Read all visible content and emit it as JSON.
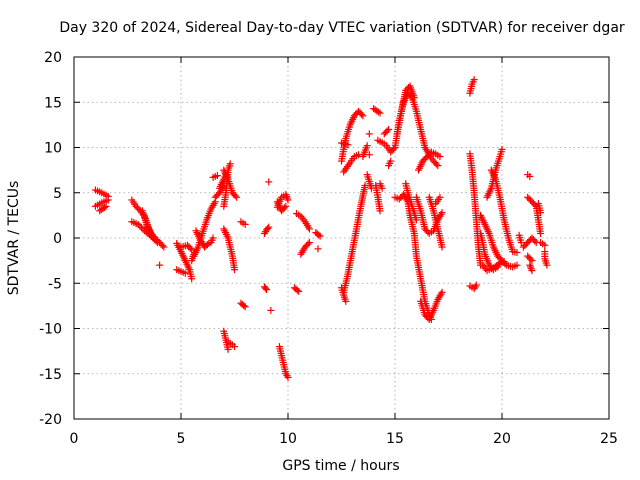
{
  "chart_data": {
    "type": "scatter",
    "title": "Day 320 of 2024, Sidereal Day-to-day VTEC variation (SDTVAR) for receiver dgar",
    "xlabel": "GPS time / hours",
    "ylabel": "SDTVAR / TECUs",
    "xlim": [
      0,
      25
    ],
    "ylim": [
      -20,
      20
    ],
    "xticks": [
      0,
      5,
      10,
      15,
      20,
      25
    ],
    "yticks": [
      -20,
      -15,
      -10,
      -5,
      0,
      5,
      10,
      15,
      20
    ],
    "grid": true,
    "marker_color": "#ff0000",
    "marker": "plus",
    "tracks": [
      [
        [
          1.0,
          5.3
        ],
        [
          1.3,
          5.0
        ],
        [
          1.6,
          4.6
        ]
      ],
      [
        [
          1.0,
          3.5
        ],
        [
          1.3,
          3.9
        ],
        [
          1.6,
          4.2
        ]
      ],
      [
        [
          1.2,
          3.0
        ],
        [
          1.5,
          3.5
        ]
      ],
      [
        [
          2.7,
          4.2
        ],
        [
          2.9,
          3.5
        ],
        [
          3.1,
          3.0
        ],
        [
          3.3,
          2.4
        ],
        [
          3.5,
          1.0
        ],
        [
          3.7,
          0.0
        ],
        [
          3.9,
          -0.5
        ]
      ],
      [
        [
          2.7,
          1.8
        ],
        [
          3.0,
          1.5
        ],
        [
          3.3,
          0.8
        ],
        [
          3.6,
          0.2
        ],
        [
          3.9,
          -0.3
        ]
      ],
      [
        [
          3.2,
          3.0
        ],
        [
          3.4,
          1.5
        ],
        [
          3.6,
          0.5
        ],
        [
          3.8,
          0.0
        ]
      ],
      [
        [
          4.0,
          -0.5
        ],
        [
          4.2,
          -1.0
        ]
      ],
      [
        [
          4.0,
          -3.0
        ]
      ],
      [
        [
          4.8,
          -0.6
        ],
        [
          5.0,
          -1.5
        ],
        [
          5.2,
          -2.5
        ],
        [
          5.4,
          -3.5
        ],
        [
          5.5,
          -4.5
        ]
      ],
      [
        [
          4.8,
          -3.5
        ],
        [
          5.0,
          -3.7
        ],
        [
          5.2,
          -3.9
        ]
      ],
      [
        [
          5.0,
          -1.0
        ],
        [
          5.3,
          -0.8
        ],
        [
          5.5,
          -1.3
        ]
      ],
      [
        [
          5.6,
          -2.0
        ],
        [
          5.8,
          -1.0
        ],
        [
          6.0,
          0.5
        ],
        [
          6.2,
          2.0
        ],
        [
          6.4,
          3.2
        ],
        [
          6.6,
          4.0
        ]
      ],
      [
        [
          5.5,
          -2.5
        ],
        [
          5.6,
          -1.8
        ]
      ],
      [
        [
          5.7,
          0.8
        ],
        [
          5.9,
          -0.2
        ],
        [
          6.1,
          -1.0
        ],
        [
          6.3,
          -0.6
        ]
      ],
      [
        [
          6.4,
          -0.5
        ],
        [
          6.5,
          0.0
        ]
      ],
      [
        [
          6.5,
          6.7
        ],
        [
          6.7,
          6.9
        ]
      ],
      [
        [
          6.6,
          4.5
        ],
        [
          6.8,
          5.0
        ],
        [
          7.0,
          5.8
        ]
      ],
      [
        [
          7.0,
          3.5
        ],
        [
          7.1,
          5.0
        ],
        [
          7.2,
          7.5
        ],
        [
          7.3,
          8.2
        ]
      ],
      [
        [
          7.0,
          7.5
        ],
        [
          7.2,
          6.5
        ],
        [
          7.4,
          5.0
        ],
        [
          7.6,
          4.5
        ]
      ],
      [
        [
          6.8,
          5.5
        ],
        [
          7.0,
          6.5
        ],
        [
          7.1,
          7.0
        ]
      ],
      [
        [
          7.0,
          1.0
        ],
        [
          7.2,
          0.0
        ],
        [
          7.3,
          -1.0
        ],
        [
          7.4,
          -2.0
        ],
        [
          7.5,
          -3.5
        ]
      ],
      [
        [
          7.0,
          -10.3
        ],
        [
          7.1,
          -11.3
        ],
        [
          7.2,
          -12.3
        ]
      ],
      [
        [
          7.2,
          -11.5
        ],
        [
          7.4,
          -11.8
        ],
        [
          7.5,
          -12.0
        ]
      ],
      [
        [
          7.8,
          1.8
        ],
        [
          8.0,
          1.5
        ]
      ],
      [
        [
          7.8,
          -7.2
        ],
        [
          8.0,
          -7.6
        ]
      ],
      [
        [
          9.1,
          6.2
        ]
      ],
      [
        [
          8.9,
          0.5
        ],
        [
          9.0,
          0.9
        ],
        [
          9.1,
          1.2
        ]
      ],
      [
        [
          8.9,
          -5.4
        ],
        [
          9.0,
          -5.7
        ]
      ],
      [
        [
          9.2,
          -8.0
        ]
      ],
      [
        [
          9.5,
          3.4
        ],
        [
          9.7,
          4.5
        ],
        [
          9.9,
          4.8
        ],
        [
          10.0,
          4.2
        ]
      ],
      [
        [
          9.5,
          4.0
        ],
        [
          9.7,
          3.0
        ],
        [
          9.9,
          3.5
        ]
      ],
      [
        [
          9.6,
          -12.0
        ],
        [
          9.7,
          -13.0
        ],
        [
          9.8,
          -14.0
        ],
        [
          9.9,
          -15.0
        ],
        [
          10.0,
          -15.4
        ]
      ],
      [
        [
          10.3,
          -5.5
        ],
        [
          10.5,
          -5.9
        ]
      ],
      [
        [
          10.4,
          2.7
        ],
        [
          10.6,
          2.4
        ],
        [
          10.8,
          1.8
        ],
        [
          11.0,
          1.0
        ]
      ],
      [
        [
          10.6,
          -1.8
        ],
        [
          10.8,
          -1.0
        ],
        [
          11.0,
          -0.5
        ]
      ],
      [
        [
          11.3,
          0.6
        ],
        [
          11.5,
          0.2
        ]
      ],
      [
        [
          11.4,
          -1.2
        ]
      ],
      [
        [
          12.5,
          8.5
        ],
        [
          12.6,
          9.8
        ],
        [
          12.7,
          11.0
        ],
        [
          12.9,
          12.5
        ],
        [
          13.1,
          13.5
        ],
        [
          13.3,
          14.0
        ],
        [
          13.5,
          13.5
        ]
      ],
      [
        [
          12.5,
          10.5
        ],
        [
          12.8,
          10.3
        ]
      ],
      [
        [
          12.6,
          7.3
        ],
        [
          12.9,
          8.3
        ],
        [
          13.1,
          9.0
        ],
        [
          13.3,
          9.2
        ]
      ],
      [
        [
          12.5,
          -5.5
        ],
        [
          12.6,
          -6.3
        ],
        [
          12.7,
          -7.0
        ]
      ],
      [
        [
          12.6,
          -6.0
        ],
        [
          12.8,
          -4.0
        ],
        [
          13.0,
          -1.5
        ],
        [
          13.2,
          1.0
        ],
        [
          13.4,
          3.5
        ],
        [
          13.6,
          5.8
        ]
      ],
      [
        [
          13.5,
          9.0
        ],
        [
          13.7,
          10.2
        ]
      ],
      [
        [
          13.8,
          11.5
        ]
      ],
      [
        [
          13.8,
          9.2
        ]
      ],
      [
        [
          13.7,
          7.0
        ],
        [
          13.9,
          5.5
        ]
      ],
      [
        [
          14.1,
          5.8
        ],
        [
          14.2,
          4.5
        ],
        [
          14.3,
          3.0
        ]
      ],
      [
        [
          14.0,
          14.3
        ],
        [
          14.3,
          13.8
        ]
      ],
      [
        [
          14.2,
          10.8
        ],
        [
          14.5,
          10.4
        ]
      ],
      [
        [
          14.3,
          6.0
        ],
        [
          14.4,
          5.5
        ]
      ],
      [
        [
          14.5,
          11.5
        ],
        [
          14.7,
          12.0
        ]
      ],
      [
        [
          14.6,
          10.2
        ],
        [
          14.8,
          9.5
        ],
        [
          15.0,
          10.0
        ]
      ],
      [
        [
          14.7,
          8.0
        ],
        [
          14.8,
          8.5
        ]
      ],
      [
        [
          15.0,
          10.0
        ],
        [
          15.2,
          13.0
        ],
        [
          15.4,
          15.0
        ],
        [
          15.6,
          16.0
        ],
        [
          15.8,
          15.5
        ],
        [
          16.0,
          14.0
        ],
        [
          16.2,
          12.0
        ],
        [
          16.4,
          10.0
        ],
        [
          16.6,
          9.2
        ],
        [
          16.8,
          8.5
        ],
        [
          17.0,
          8.0
        ]
      ],
      [
        [
          15.1,
          11.5
        ],
        [
          15.3,
          14.0
        ],
        [
          15.5,
          16.3
        ],
        [
          15.7,
          16.8
        ],
        [
          15.9,
          15.5
        ]
      ],
      [
        [
          15.0,
          4.5
        ],
        [
          15.2,
          4.3
        ],
        [
          15.4,
          4.8
        ],
        [
          15.6,
          4.0
        ],
        [
          15.7,
          2.5
        ],
        [
          15.9,
          0.5
        ],
        [
          16.0,
          -2.0
        ],
        [
          16.2,
          -4.5
        ],
        [
          16.4,
          -7.0
        ],
        [
          16.6,
          -8.5
        ],
        [
          16.7,
          -9.0
        ]
      ],
      [
        [
          15.5,
          6.0
        ],
        [
          15.6,
          5.0
        ],
        [
          15.8,
          3.5
        ],
        [
          16.0,
          2.0
        ]
      ],
      [
        [
          16.0,
          4.5
        ],
        [
          16.2,
          3.0
        ],
        [
          16.4,
          1.0
        ],
        [
          16.6,
          0.5
        ],
        [
          16.8,
          0.8
        ],
        [
          17.0,
          2.0
        ],
        [
          17.2,
          2.8
        ]
      ],
      [
        [
          16.1,
          7.5
        ],
        [
          16.3,
          8.5
        ],
        [
          16.5,
          9.0
        ],
        [
          16.7,
          9.5
        ],
        [
          16.9,
          9.3
        ],
        [
          17.1,
          9.0
        ]
      ],
      [
        [
          16.2,
          -7.0
        ],
        [
          16.4,
          -8.5
        ],
        [
          16.6,
          -9.0
        ],
        [
          16.8,
          -8.0
        ],
        [
          17.0,
          -6.8
        ],
        [
          17.2,
          -6.0
        ]
      ],
      [
        [
          16.6,
          4.5
        ],
        [
          16.8,
          3.0
        ],
        [
          17.0,
          1.0
        ],
        [
          17.2,
          -1.0
        ]
      ],
      [
        [
          16.9,
          3.8
        ],
        [
          17.1,
          4.5
        ]
      ],
      [
        [
          18.5,
          16.0
        ],
        [
          18.6,
          17.0
        ],
        [
          18.7,
          17.5
        ]
      ],
      [
        [
          18.5,
          9.3
        ],
        [
          18.6,
          7.5
        ],
        [
          18.7,
          5.0
        ],
        [
          18.8,
          2.0
        ],
        [
          18.9,
          -1.0
        ],
        [
          19.0,
          -3.0
        ]
      ],
      [
        [
          18.5,
          -5.3
        ],
        [
          18.7,
          -5.6
        ],
        [
          18.8,
          -5.2
        ]
      ],
      [
        [
          19.0,
          0.5
        ],
        [
          19.1,
          -0.5
        ],
        [
          19.2,
          -1.8
        ],
        [
          19.4,
          -3.0
        ],
        [
          19.6,
          -3.5
        ],
        [
          19.8,
          -3.2
        ]
      ],
      [
        [
          19.1,
          -3.0
        ],
        [
          19.3,
          -3.6
        ],
        [
          19.6,
          -3.3
        ],
        [
          19.9,
          -2.8
        ],
        [
          20.1,
          -2.6
        ]
      ],
      [
        [
          19.0,
          2.5
        ],
        [
          19.2,
          1.5
        ],
        [
          19.4,
          0.5
        ],
        [
          19.6,
          -1.0
        ],
        [
          19.8,
          -2.0
        ],
        [
          20.0,
          -2.5
        ]
      ],
      [
        [
          19.3,
          4.5
        ],
        [
          19.5,
          5.5
        ],
        [
          19.7,
          7.5
        ],
        [
          19.9,
          9.0
        ],
        [
          20.0,
          9.8
        ]
      ],
      [
        [
          19.5,
          7.5
        ],
        [
          19.7,
          6.5
        ],
        [
          19.9,
          4.5
        ],
        [
          20.1,
          2.0
        ],
        [
          20.3,
          0.0
        ],
        [
          20.5,
          -1.5
        ],
        [
          20.7,
          -1.6
        ]
      ],
      [
        [
          20.0,
          -2.5
        ],
        [
          20.2,
          -3.0
        ],
        [
          20.5,
          -3.2
        ],
        [
          20.7,
          -3.0
        ]
      ],
      [
        [
          20.8,
          0.3
        ],
        [
          20.9,
          -0.5
        ]
      ],
      [
        [
          21.2,
          7.0
        ],
        [
          21.3,
          6.8
        ]
      ],
      [
        [
          21.2,
          4.5
        ],
        [
          21.4,
          4.0
        ],
        [
          21.6,
          3.5
        ],
        [
          21.7,
          2.0
        ],
        [
          21.8,
          0.5
        ]
      ],
      [
        [
          21.0,
          -1.0
        ],
        [
          21.2,
          -0.5
        ],
        [
          21.4,
          0.0
        ],
        [
          21.6,
          -0.5
        ]
      ],
      [
        [
          21.2,
          -2.0
        ],
        [
          21.4,
          -2.5
        ]
      ],
      [
        [
          21.3,
          -3.0
        ],
        [
          21.4,
          -3.6
        ]
      ],
      [
        [
          21.7,
          3.8
        ],
        [
          21.8,
          2.8
        ]
      ],
      [
        [
          22.0,
          -1.5
        ],
        [
          22.0,
          -2.3
        ],
        [
          22.1,
          -3.0
        ]
      ],
      [
        [
          21.8,
          -0.5
        ],
        [
          22.0,
          -0.8
        ]
      ]
    ]
  }
}
